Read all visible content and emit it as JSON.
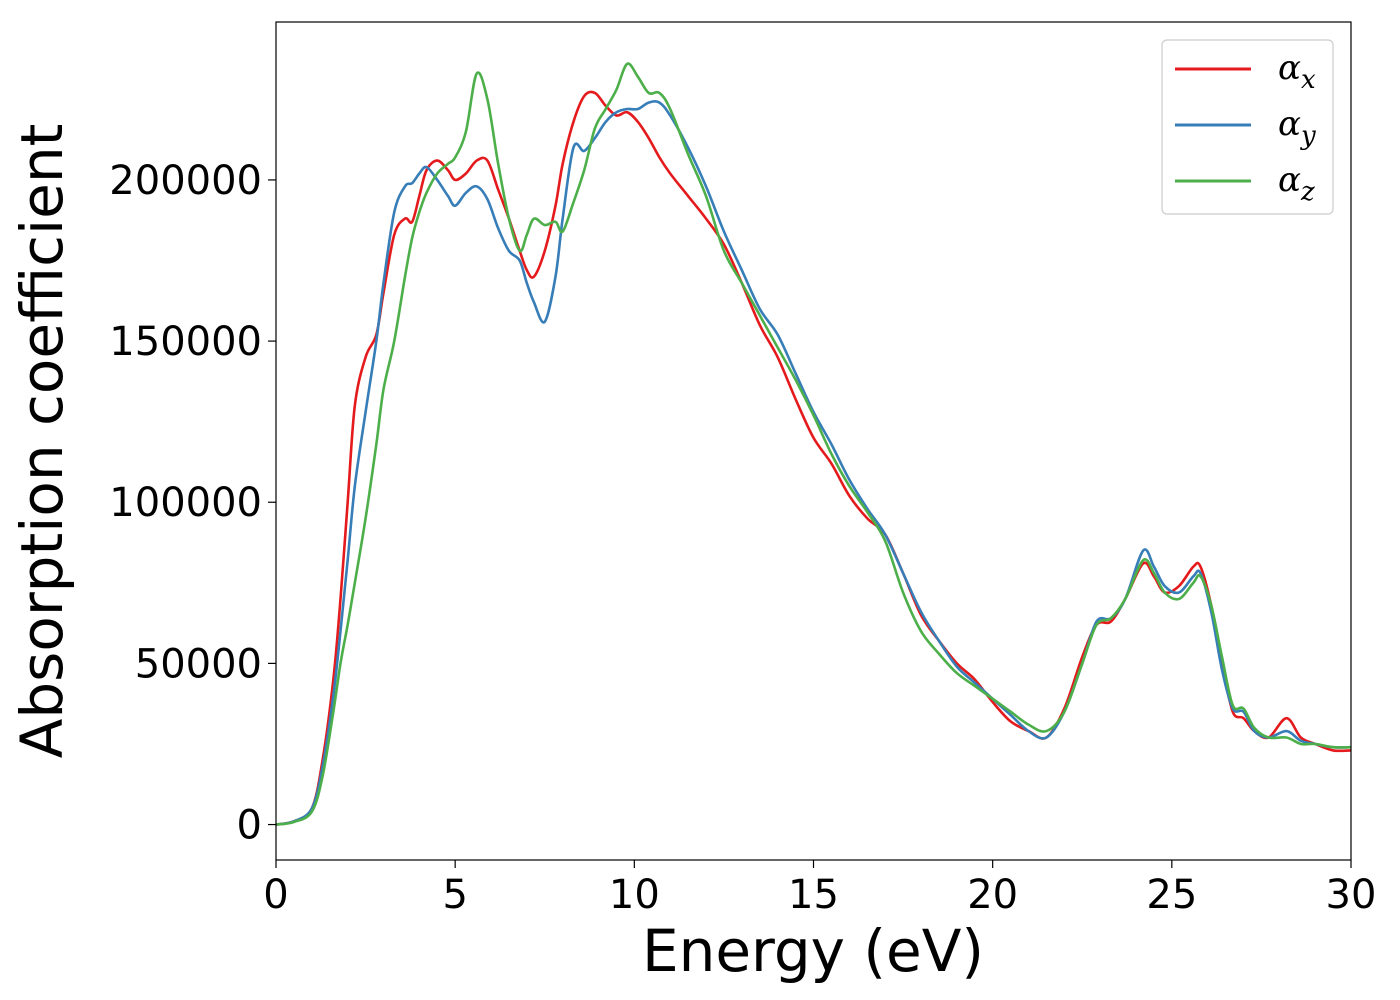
{
  "chart_data": {
    "type": "line",
    "xlabel": "Energy (eV)",
    "ylabel": "Absorption coefficient",
    "xlim": [
      0,
      30
    ],
    "ylim": [
      -11000,
      249000
    ],
    "xticks": [
      0,
      5,
      10,
      15,
      20,
      25,
      30
    ],
    "xtick_labels": [
      "0",
      "5",
      "10",
      "15",
      "20",
      "25",
      "30"
    ],
    "yticks": [
      0,
      50000,
      100000,
      150000,
      200000
    ],
    "ytick_labels": [
      "0",
      "50000",
      "100000",
      "150000",
      "200000"
    ],
    "grid": false,
    "legend_position": "top-right",
    "series": [
      {
        "name": "αx",
        "symbol": "α",
        "subscript": "x",
        "color": "#e41a1c",
        "x": [
          0,
          0.5,
          1.0,
          1.3,
          1.6,
          1.8,
          2.0,
          2.2,
          2.5,
          2.8,
          3.0,
          3.3,
          3.6,
          3.8,
          4.0,
          4.2,
          4.5,
          4.8,
          5.0,
          5.3,
          5.6,
          5.9,
          6.2,
          6.5,
          6.8,
          7.0,
          7.2,
          7.5,
          7.8,
          8.0,
          8.3,
          8.6,
          8.9,
          9.2,
          9.5,
          9.8,
          10.1,
          10.4,
          10.7,
          11.0,
          11.5,
          12.0,
          12.5,
          13.0,
          13.5,
          14.0,
          14.5,
          15.0,
          15.5,
          16.0,
          16.5,
          17.0,
          17.5,
          18.0,
          18.5,
          19.0,
          19.5,
          20.0,
          20.5,
          21.0,
          21.5,
          22.0,
          22.5,
          22.9,
          23.3,
          23.7,
          24.2,
          24.5,
          24.8,
          25.2,
          25.6,
          25.8,
          26.1,
          26.4,
          26.7,
          27.0,
          27.3,
          27.7,
          28.2,
          28.6,
          29.0,
          29.5,
          30.0
        ],
        "y": [
          0,
          1000,
          5000,
          20000,
          45000,
          70000,
          100000,
          130000,
          145000,
          152000,
          165000,
          183000,
          188000,
          187000,
          195000,
          203000,
          206000,
          203000,
          200000,
          202000,
          206000,
          206000,
          197000,
          188000,
          178000,
          172000,
          170000,
          178000,
          192000,
          205000,
          218000,
          226000,
          227000,
          223000,
          220000,
          221000,
          218000,
          213000,
          207000,
          202000,
          195000,
          188000,
          180000,
          168000,
          155000,
          145000,
          132000,
          120000,
          112000,
          102000,
          95000,
          90000,
          78000,
          65000,
          57000,
          50000,
          45000,
          38000,
          32000,
          29000,
          27000,
          36000,
          52000,
          62000,
          63000,
          70000,
          81000,
          77000,
          72000,
          74000,
          80000,
          80000,
          68000,
          50000,
          35000,
          33000,
          29000,
          27000,
          33000,
          27000,
          25000,
          23000,
          23000
        ]
      },
      {
        "name": "αy",
        "symbol": "α",
        "subscript": "y",
        "color": "#377eb8",
        "x": [
          0,
          0.5,
          1.0,
          1.3,
          1.6,
          1.8,
          2.0,
          2.2,
          2.5,
          2.8,
          3.0,
          3.3,
          3.6,
          3.8,
          4.0,
          4.2,
          4.5,
          4.8,
          5.0,
          5.3,
          5.6,
          5.9,
          6.2,
          6.5,
          6.8,
          7.0,
          7.2,
          7.5,
          7.8,
          8.0,
          8.3,
          8.6,
          8.9,
          9.2,
          9.5,
          9.8,
          10.1,
          10.4,
          10.7,
          11.0,
          11.5,
          12.0,
          12.5,
          13.0,
          13.5,
          14.0,
          14.5,
          15.0,
          15.5,
          16.0,
          16.5,
          17.0,
          17.5,
          18.0,
          18.5,
          19.0,
          19.5,
          20.0,
          20.5,
          21.0,
          21.5,
          22.0,
          22.5,
          22.9,
          23.3,
          23.7,
          24.2,
          24.5,
          24.8,
          25.2,
          25.6,
          25.8,
          26.1,
          26.4,
          26.7,
          27.0,
          27.3,
          27.7,
          28.2,
          28.6,
          29.0,
          29.5,
          30.0
        ],
        "y": [
          0,
          1000,
          5000,
          18000,
          40000,
          60000,
          82000,
          105000,
          128000,
          150000,
          168000,
          190000,
          198000,
          199000,
          202000,
          204000,
          200000,
          195000,
          192000,
          196000,
          198000,
          194000,
          185000,
          178000,
          175000,
          168000,
          162000,
          156000,
          170000,
          188000,
          210000,
          209000,
          213000,
          218000,
          221000,
          222000,
          222000,
          224000,
          224000,
          220000,
          210000,
          198000,
          184000,
          172000,
          160000,
          152000,
          140000,
          128000,
          118000,
          107000,
          98000,
          90000,
          78000,
          66000,
          57000,
          49000,
          44000,
          39000,
          34000,
          29000,
          27000,
          35000,
          50000,
          63000,
          64000,
          70000,
          85000,
          80000,
          74000,
          72000,
          77000,
          78000,
          66000,
          48000,
          36000,
          35000,
          29000,
          27000,
          29000,
          26000,
          25000,
          24000,
          24000
        ]
      },
      {
        "name": "αz",
        "symbol": "α",
        "subscript": "z",
        "color": "#4daf4a",
        "x": [
          0,
          0.5,
          1.0,
          1.3,
          1.6,
          1.8,
          2.0,
          2.2,
          2.5,
          2.8,
          3.0,
          3.3,
          3.6,
          3.8,
          4.0,
          4.2,
          4.5,
          4.8,
          5.0,
          5.3,
          5.6,
          5.9,
          6.2,
          6.5,
          6.8,
          7.0,
          7.2,
          7.5,
          7.8,
          8.0,
          8.3,
          8.6,
          8.9,
          9.2,
          9.5,
          9.8,
          10.1,
          10.4,
          10.7,
          11.0,
          11.5,
          12.0,
          12.5,
          13.0,
          13.5,
          14.0,
          14.5,
          15.0,
          15.5,
          16.0,
          16.5,
          17.0,
          17.5,
          18.0,
          18.5,
          19.0,
          19.5,
          20.0,
          20.5,
          21.0,
          21.5,
          22.0,
          22.5,
          22.9,
          23.3,
          23.7,
          24.2,
          24.5,
          24.8,
          25.2,
          25.6,
          25.8,
          26.1,
          26.4,
          26.7,
          27.0,
          27.3,
          27.7,
          28.2,
          28.6,
          29.0,
          29.5,
          30.0
        ],
        "y": [
          0,
          800,
          4000,
          15000,
          35000,
          50000,
          62000,
          75000,
          95000,
          118000,
          135000,
          150000,
          170000,
          182000,
          190000,
          196000,
          202000,
          205000,
          207000,
          215000,
          233000,
          225000,
          205000,
          188000,
          178000,
          183000,
          188000,
          186000,
          187000,
          184000,
          193000,
          203000,
          216000,
          222000,
          228000,
          236000,
          232000,
          227000,
          227000,
          222000,
          208000,
          195000,
          178000,
          168000,
          158000,
          148000,
          138000,
          127000,
          115000,
          105000,
          97000,
          88000,
          72000,
          60000,
          53000,
          47000,
          43000,
          39000,
          35000,
          31000,
          29000,
          35000,
          50000,
          62000,
          64000,
          70000,
          82000,
          78000,
          72000,
          70000,
          75000,
          77000,
          68000,
          52000,
          37000,
          36000,
          30000,
          27000,
          27000,
          25000,
          25000,
          24000,
          24000
        ]
      }
    ]
  }
}
